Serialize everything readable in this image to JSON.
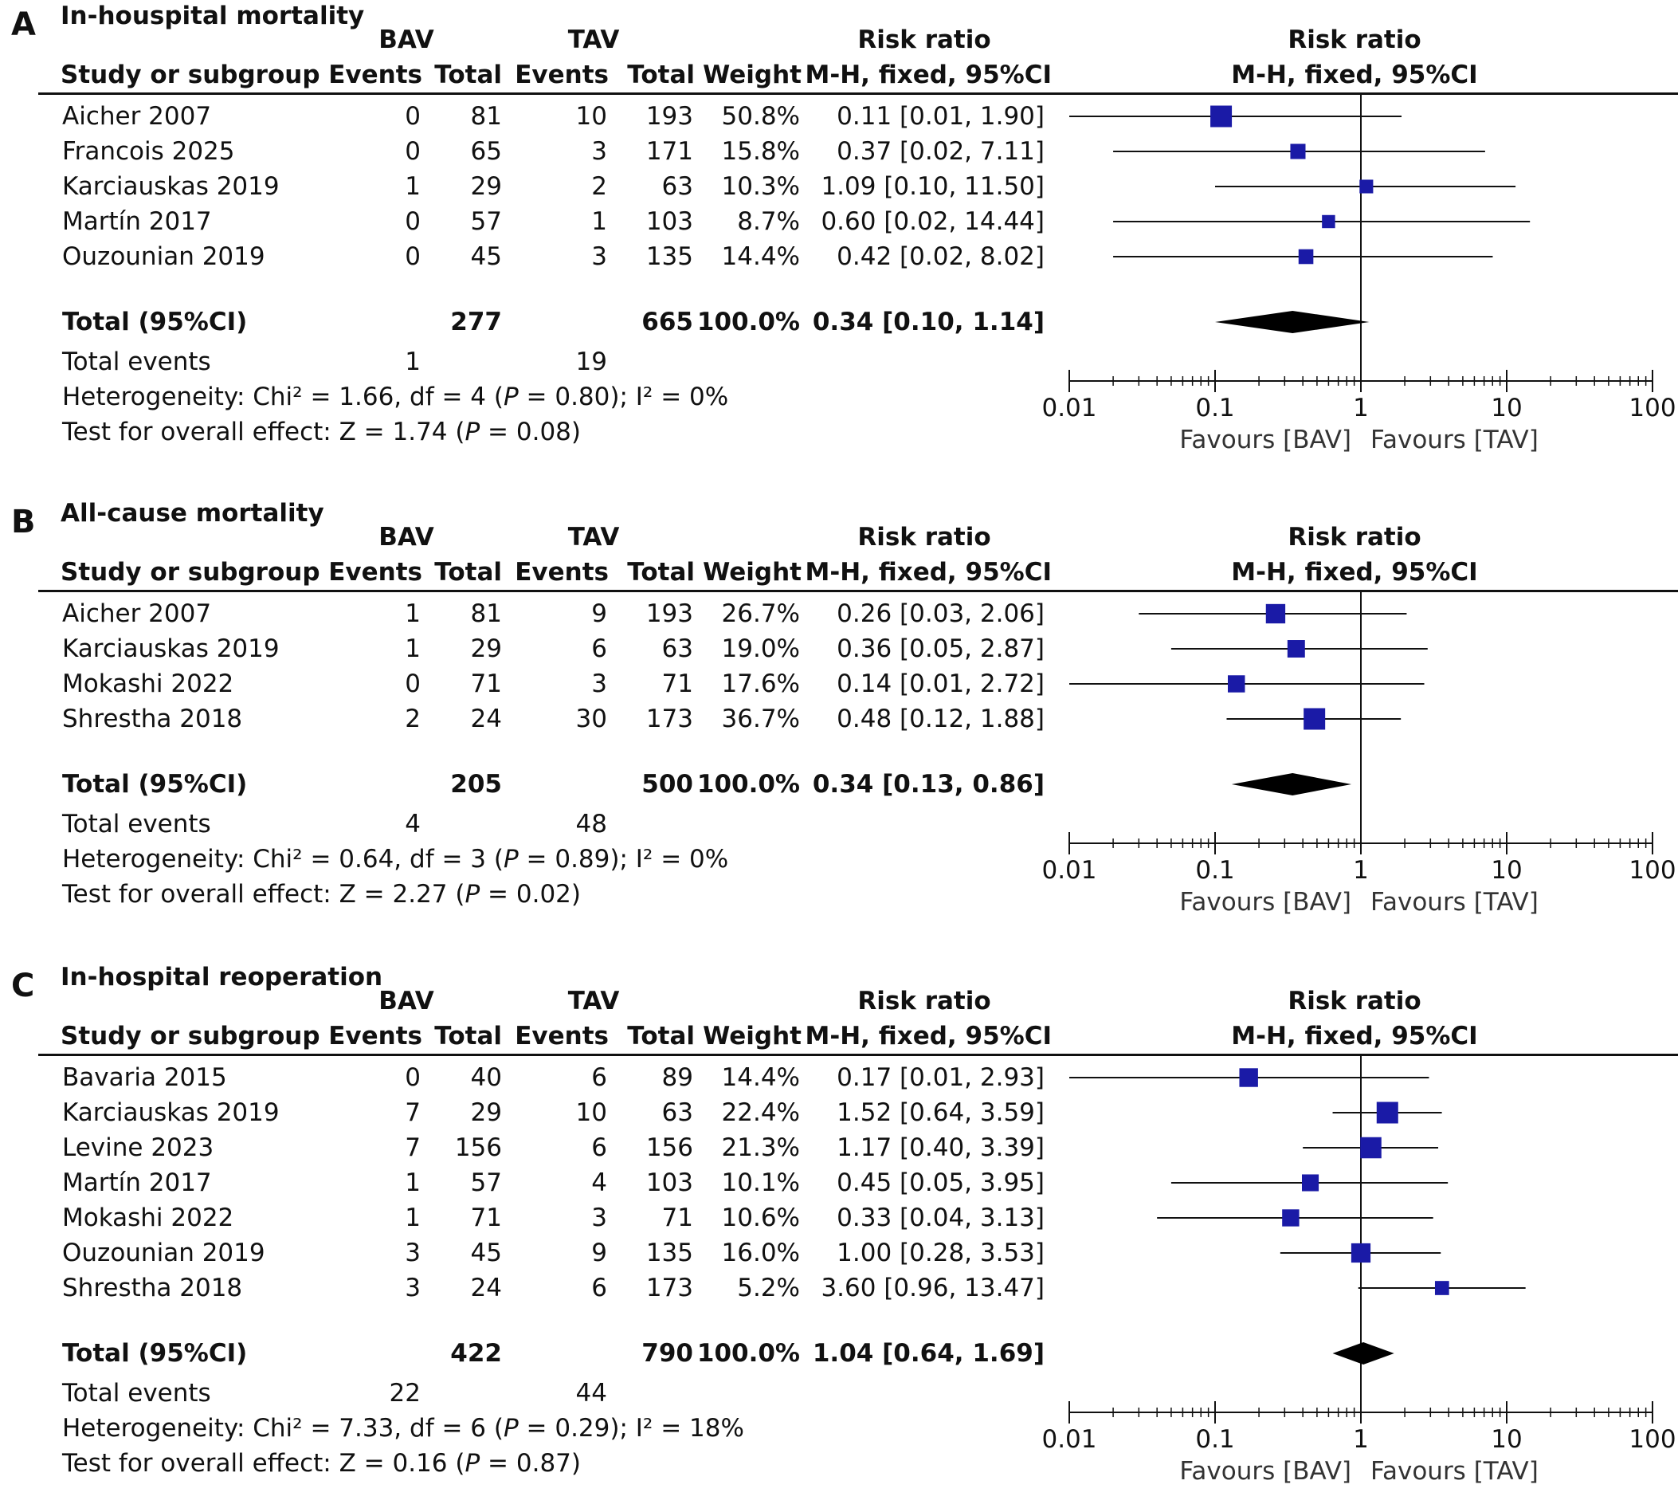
{
  "chart_data": [
    {
      "type": "forest",
      "panel_letter": "A",
      "title": "In-houspital mortality",
      "headers": {
        "bav": "BAV",
        "tav": "TAV",
        "study": "Study or subgroup",
        "events": "Events",
        "total": "Total",
        "weight": "Weight",
        "rr": "Risk ratio",
        "method": "M-H, fixed, 95%CI"
      },
      "studies": [
        {
          "name": "Aicher 2007",
          "bav_events": "0",
          "bav_total": "81",
          "tav_events": "10",
          "tav_total": "193",
          "weight": "50.8%",
          "ci_text": "0.11 [0.01, 1.90]",
          "rr": 0.11,
          "lo": 0.01,
          "hi": 1.9,
          "w": 50.8
        },
        {
          "name": "Francois 2025",
          "bav_events": "0",
          "bav_total": "65",
          "tav_events": "3",
          "tav_total": "171",
          "weight": "15.8%",
          "ci_text": "0.37 [0.02, 7.11]",
          "rr": 0.37,
          "lo": 0.02,
          "hi": 7.11,
          "w": 15.8
        },
        {
          "name": "Karciauskas 2019",
          "bav_events": "1",
          "bav_total": "29",
          "tav_events": "2",
          "tav_total": "63",
          "weight": "10.3%",
          "ci_text": "1.09 [0.10, 11.50]",
          "rr": 1.09,
          "lo": 0.1,
          "hi": 11.5,
          "w": 10.3
        },
        {
          "name": "Martín 2017",
          "bav_events": "0",
          "bav_total": "57",
          "tav_events": "1",
          "tav_total": "103",
          "weight": "8.7%",
          "ci_text": "0.60 [0.02, 14.44]",
          "rr": 0.6,
          "lo": 0.02,
          "hi": 14.44,
          "w": 8.7
        },
        {
          "name": "Ouzounian 2019",
          "bav_events": "0",
          "bav_total": "45",
          "tav_events": "3",
          "tav_total": "135",
          "weight": "14.4%",
          "ci_text": "0.42 [0.02, 8.02]",
          "rr": 0.42,
          "lo": 0.02,
          "hi": 8.02,
          "w": 14.4
        }
      ],
      "total": {
        "label": "Total (95%CI)",
        "bav_total": "277",
        "tav_total": "665",
        "weight": "100.0%",
        "ci_text": "0.34 [0.10, 1.14]",
        "rr": 0.34,
        "lo": 0.1,
        "hi": 1.14
      },
      "total_events": {
        "label": "Total events",
        "bav": "1",
        "tav": "19"
      },
      "heterogeneity": {
        "prefix": "Heterogeneity: Chi² = 1.66, df = 4 (",
        "p": "P",
        "suffix": " = 0.80); I² = 0%"
      },
      "overall": {
        "prefix": "Test for overall effect: Z = 1.74 (",
        "p": "P",
        "suffix": " = 0.08)"
      },
      "axis": {
        "scale": "log",
        "ticks": [
          "0.01",
          "0.1",
          "1",
          "10",
          "100"
        ],
        "tick_values": [
          0.01,
          0.1,
          1,
          10,
          100
        ],
        "favours_left": "Favours [BAV]",
        "favours_right": "Favours [TAV]"
      }
    },
    {
      "type": "forest",
      "panel_letter": "B",
      "title": "All-cause mortality",
      "headers": {
        "bav": "BAV",
        "tav": "TAV",
        "study": "Study or subgroup",
        "events": "Events",
        "total": "Total",
        "weight": "Weight",
        "rr": "Risk ratio",
        "method": "M-H, fixed, 95%CI"
      },
      "studies": [
        {
          "name": "Aicher 2007",
          "bav_events": "1",
          "bav_total": "81",
          "tav_events": "9",
          "tav_total": "193",
          "weight": "26.7%",
          "ci_text": "0.26 [0.03, 2.06]",
          "rr": 0.26,
          "lo": 0.03,
          "hi": 2.06,
          "w": 26.7
        },
        {
          "name": "Karciauskas 2019",
          "bav_events": "1",
          "bav_total": "29",
          "tav_events": "6",
          "tav_total": "63",
          "weight": "19.0%",
          "ci_text": "0.36 [0.05, 2.87]",
          "rr": 0.36,
          "lo": 0.05,
          "hi": 2.87,
          "w": 19.0
        },
        {
          "name": "Mokashi 2022",
          "bav_events": "0",
          "bav_total": "71",
          "tav_events": "3",
          "tav_total": "71",
          "weight": "17.6%",
          "ci_text": "0.14 [0.01, 2.72]",
          "rr": 0.14,
          "lo": 0.01,
          "hi": 2.72,
          "w": 17.6
        },
        {
          "name": "Shrestha 2018",
          "bav_events": "2",
          "bav_total": "24",
          "tav_events": "30",
          "tav_total": "173",
          "weight": "36.7%",
          "ci_text": "0.48 [0.12, 1.88]",
          "rr": 0.48,
          "lo": 0.12,
          "hi": 1.88,
          "w": 36.7
        }
      ],
      "total": {
        "label": "Total (95%CI)",
        "bav_total": "205",
        "tav_total": "500",
        "weight": "100.0%",
        "ci_text": "0.34 [0.13, 0.86]",
        "rr": 0.34,
        "lo": 0.13,
        "hi": 0.86
      },
      "total_events": {
        "label": "Total events",
        "bav": "4",
        "tav": "48"
      },
      "heterogeneity": {
        "prefix": "Heterogeneity: Chi² = 0.64, df = 3 (",
        "p": "P",
        "suffix": " = 0.89); I² = 0%"
      },
      "overall": {
        "prefix": "Test for overall effect: Z = 2.27 (",
        "p": "P",
        "suffix": " = 0.02)"
      },
      "axis": {
        "scale": "log",
        "ticks": [
          "0.01",
          "0.1",
          "1",
          "10",
          "100"
        ],
        "tick_values": [
          0.01,
          0.1,
          1,
          10,
          100
        ],
        "favours_left": "Favours [BAV]",
        "favours_right": "Favours [TAV]"
      }
    },
    {
      "type": "forest",
      "panel_letter": "C",
      "title": "In-hospital reoperation",
      "headers": {
        "bav": "BAV",
        "tav": "TAV",
        "study": "Study or subgroup",
        "events": "Events",
        "total": "Total",
        "weight": "Weight",
        "rr": "Risk ratio",
        "method": "M-H, fixed, 95%CI"
      },
      "studies": [
        {
          "name": "Bavaria 2015",
          "bav_events": "0",
          "bav_total": "40",
          "tav_events": "6",
          "tav_total": "89",
          "weight": "14.4%",
          "ci_text": "0.17 [0.01, 2.93]",
          "rr": 0.17,
          "lo": 0.01,
          "hi": 2.93,
          "w": 14.4
        },
        {
          "name": "Karciauskas 2019",
          "bav_events": "7",
          "bav_total": "29",
          "tav_events": "10",
          "tav_total": "63",
          "weight": "22.4%",
          "ci_text": "1.52 [0.64, 3.59]",
          "rr": 1.52,
          "lo": 0.64,
          "hi": 3.59,
          "w": 22.4
        },
        {
          "name": "Levine 2023",
          "bav_events": "7",
          "bav_total": "156",
          "tav_events": "6",
          "tav_total": "156",
          "weight": "21.3%",
          "ci_text": "1.17 [0.40, 3.39]",
          "rr": 1.17,
          "lo": 0.4,
          "hi": 3.39,
          "w": 21.3
        },
        {
          "name": "Martín 2017",
          "bav_events": "1",
          "bav_total": "57",
          "tav_events": "4",
          "tav_total": "103",
          "weight": "10.1%",
          "ci_text": "0.45 [0.05, 3.95]",
          "rr": 0.45,
          "lo": 0.05,
          "hi": 3.95,
          "w": 10.1
        },
        {
          "name": "Mokashi 2022",
          "bav_events": "1",
          "bav_total": "71",
          "tav_events": "3",
          "tav_total": "71",
          "weight": "10.6%",
          "ci_text": "0.33 [0.04, 3.13]",
          "rr": 0.33,
          "lo": 0.04,
          "hi": 3.13,
          "w": 10.6
        },
        {
          "name": "Ouzounian 2019",
          "bav_events": "3",
          "bav_total": "45",
          "tav_events": "9",
          "tav_total": "135",
          "weight": "16.0%",
          "ci_text": "1.00 [0.28, 3.53]",
          "rr": 1.0,
          "lo": 0.28,
          "hi": 3.53,
          "w": 16.0
        },
        {
          "name": "Shrestha 2018",
          "bav_events": "3",
          "bav_total": "24",
          "tav_events": "6",
          "tav_total": "173",
          "weight": "5.2%",
          "ci_text": "3.60 [0.96, 13.47]",
          "rr": 3.6,
          "lo": 0.96,
          "hi": 13.47,
          "w": 5.2
        }
      ],
      "total": {
        "label": "Total (95%CI)",
        "bav_total": "422",
        "tav_total": "790",
        "weight": "100.0%",
        "ci_text": "1.04 [0.64, 1.69]",
        "rr": 1.04,
        "lo": 0.64,
        "hi": 1.69
      },
      "total_events": {
        "label": "Total events",
        "bav": "22",
        "tav": "44"
      },
      "heterogeneity": {
        "prefix": "Heterogeneity: Chi² = 7.33, df = 6 (",
        "p": "P",
        "suffix": " = 0.29); I² = 18%"
      },
      "overall": {
        "prefix": "Test for overall effect: Z = 0.16 (",
        "p": "P",
        "suffix": " = 0.87)"
      },
      "axis": {
        "scale": "log",
        "ticks": [
          "0.01",
          "0.1",
          "1",
          "10",
          "100"
        ],
        "tick_values": [
          0.01,
          0.1,
          1,
          10,
          100
        ],
        "favours_left": "Favours [BAV]",
        "favours_right": "Favours [TAV]"
      }
    }
  ],
  "colors": {
    "study_marker": "#1a1aa6",
    "diamond": "#000000",
    "line": "#111111"
  }
}
